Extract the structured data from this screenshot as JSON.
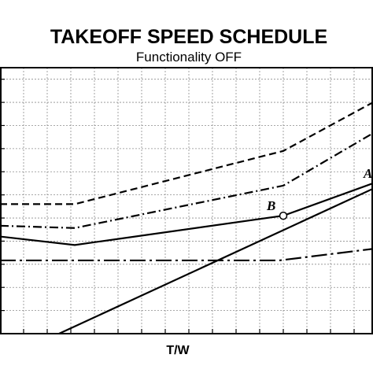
{
  "chart_data": {
    "type": "line",
    "title": "TAKEOFF SPEED SCHEDULE",
    "subtitle": "Functionality OFF",
    "xlabel": "T/W",
    "ylabel": "",
    "xlim": [
      0,
      474
    ],
    "ylim": [
      0,
      345
    ],
    "grid": true,
    "x_gridlines": [
      30,
      60,
      90,
      120,
      150,
      180,
      210,
      240,
      270,
      300,
      330,
      360,
      390,
      420,
      450
    ],
    "y_gridlines": [
      30,
      60,
      90,
      120,
      150,
      180,
      210,
      240,
      270,
      300,
      330
    ],
    "series": [
      {
        "style": "dashed",
        "x": [
          0,
          95,
          360,
          474
        ],
        "y": [
          168,
          168,
          237,
          300
        ]
      },
      {
        "style": "dash-dot",
        "x": [
          0,
          95,
          360,
          474
        ],
        "y": [
          140,
          137,
          192,
          260
        ]
      },
      {
        "style": "solid",
        "x": [
          0,
          95,
          360,
          474
        ],
        "y": [
          126,
          115,
          153,
          195
        ]
      },
      {
        "style": "long-dash-dot",
        "x": [
          0,
          355,
          474
        ],
        "y": [
          95,
          95,
          110
        ]
      },
      {
        "style": "solid",
        "x": [
          75,
          474
        ],
        "y": [
          0,
          188
        ]
      }
    ],
    "annotations": [
      {
        "label": "B",
        "x": 360,
        "y": 153,
        "marker": "open-circle"
      },
      {
        "label": "A",
        "x": 468,
        "y": 208,
        "marker": "none"
      }
    ]
  }
}
